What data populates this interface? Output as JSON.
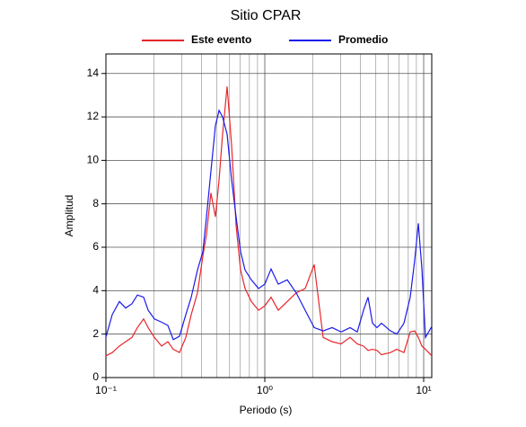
{
  "chart_data": {
    "type": "line",
    "title": "Sitio CPAR",
    "xlabel": "Periodo (s)",
    "ylabel": "Amplitud",
    "xscale": "log",
    "grid": true,
    "legend": "top",
    "xlim": [
      0.1,
      11.24
    ],
    "ylim": [
      0,
      14.9
    ],
    "xticks": [
      {
        "value": 0.1,
        "label": "10⁻¹"
      },
      {
        "value": 1,
        "label": "10⁰"
      },
      {
        "value": 10,
        "label": "10¹"
      }
    ],
    "x_minor_grid": [
      0.2,
      0.3,
      0.4,
      0.5,
      0.6,
      0.7,
      0.8,
      0.9,
      2,
      3,
      4,
      5,
      6,
      7,
      8,
      9
    ],
    "yticks": [
      0,
      2,
      4,
      6,
      8,
      10,
      12,
      14
    ],
    "x": [
      0.1,
      0.1096,
      0.1216,
      0.1331,
      0.1459,
      0.1578,
      0.1727,
      0.1844,
      0.2019,
      0.224,
      0.2454,
      0.2654,
      0.2904,
      0.3184,
      0.3443,
      0.3768,
      0.4076,
      0.4295,
      0.458,
      0.4889,
      0.5153,
      0.5423,
      0.5792,
      0.618,
      0.6596,
      0.7039,
      0.7511,
      0.8228,
      0.913,
      1,
      1.095,
      1.215,
      1.384,
      1.577,
      1.795,
      2.046,
      2.329,
      2.653,
      3.022,
      3.441,
      3.818,
      4.182,
      4.465,
      4.763,
      5.083,
      5.424,
      6.178,
      6.771,
      7.51,
      8.226,
      8.781,
      9.253,
      9.746,
      10.26,
      11.24
    ],
    "series": [
      {
        "name": "Este evento",
        "color": "#e8262b",
        "values": [
          1.0,
          1.15,
          1.45,
          1.65,
          1.85,
          2.3,
          2.7,
          2.3,
          1.85,
          1.45,
          1.65,
          1.3,
          1.15,
          1.85,
          2.9,
          3.9,
          5.6,
          6.6,
          8.5,
          7.4,
          9.1,
          11.2,
          13.4,
          10.7,
          7.0,
          4.95,
          4.1,
          3.5,
          3.1,
          3.3,
          3.7,
          3.1,
          3.5,
          3.9,
          4.1,
          5.2,
          1.85,
          1.65,
          1.55,
          1.85,
          1.55,
          1.45,
          1.25,
          1.3,
          1.25,
          1.05,
          1.15,
          1.3,
          1.15,
          2.1,
          2.15,
          1.85,
          1.45,
          1.3,
          1.0
        ]
      },
      {
        "name": "Promedio",
        "color": "#1a1aeb",
        "values": [
          1.86,
          2.9,
          3.5,
          3.2,
          3.4,
          3.8,
          3.7,
          3.1,
          2.7,
          2.55,
          2.4,
          1.75,
          1.9,
          2.9,
          3.7,
          4.95,
          5.8,
          7.4,
          9.5,
          11.6,
          12.3,
          12.0,
          11.2,
          9.1,
          7.4,
          5.8,
          4.95,
          4.5,
          4.1,
          4.3,
          5.0,
          4.3,
          4.5,
          3.9,
          3.1,
          2.3,
          2.15,
          2.3,
          2.1,
          2.3,
          2.1,
          3.1,
          3.7,
          2.5,
          2.3,
          2.5,
          2.15,
          2.0,
          2.5,
          3.7,
          5.4,
          7.1,
          5.0,
          1.85,
          2.35
        ]
      }
    ]
  }
}
